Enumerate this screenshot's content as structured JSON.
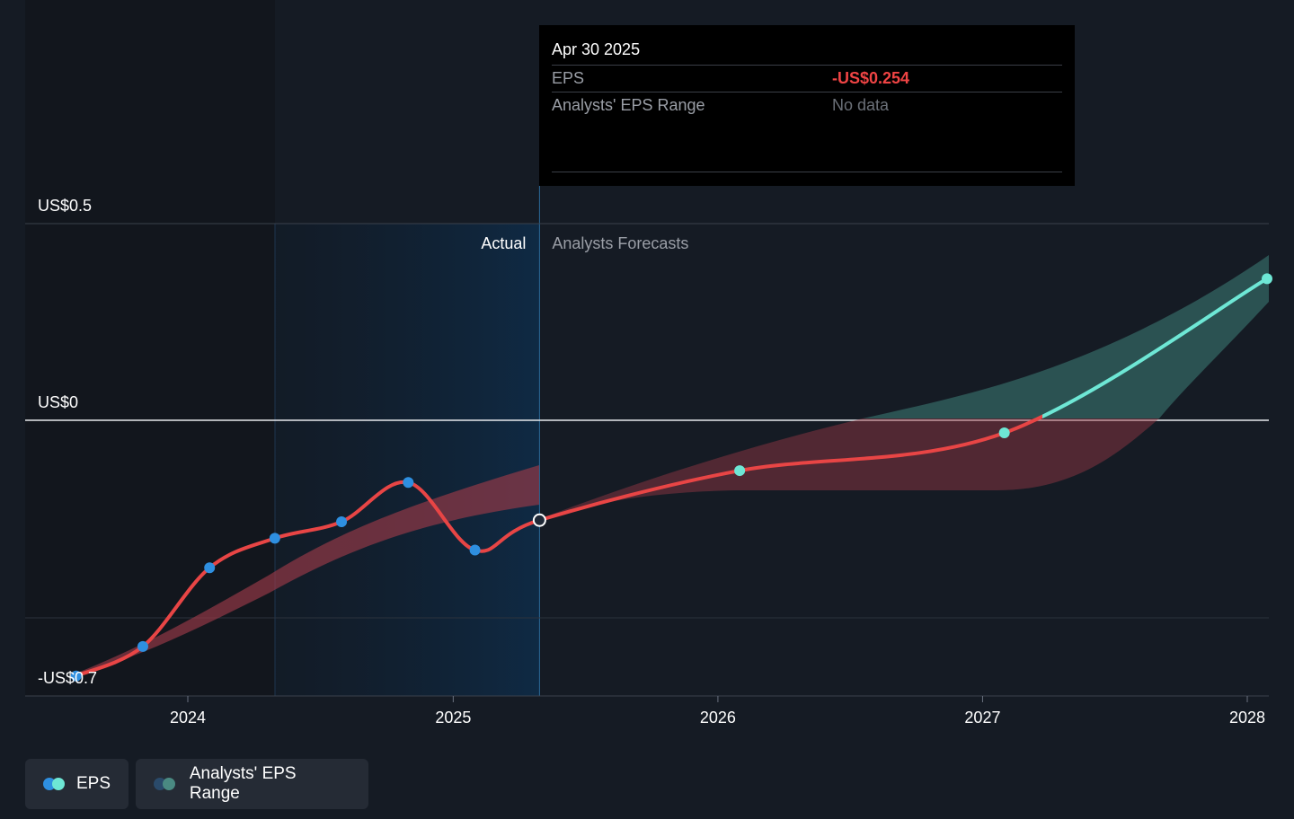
{
  "chart_data": {
    "type": "line",
    "y_axis": {
      "ticks": [
        {
          "value": 0.5,
          "label": "US$0.5"
        },
        {
          "value": 0,
          "label": "US$0"
        },
        {
          "value": -0.7,
          "label": "-US$0.7"
        }
      ],
      "range": [
        -0.7,
        0.5
      ]
    },
    "x_axis": {
      "range": [
        "2023-05-01",
        "2028-01-01"
      ],
      "ticks": [
        {
          "value": "2024-01-01",
          "label": "2024"
        },
        {
          "value": "2025-01-01",
          "label": "2025"
        },
        {
          "value": "2026-01-01",
          "label": "2026"
        },
        {
          "value": "2027-01-01",
          "label": "2027"
        },
        {
          "value": "2028-01-01",
          "label": "2028"
        }
      ]
    },
    "section_labels": {
      "actual": "Actual",
      "forecast": "Analysts Forecasts"
    },
    "series": [
      {
        "name": "EPS",
        "actual_color": "#e84545",
        "forecast_color": "#6ee7d5",
        "points": [
          {
            "x": "2023-07-31",
            "y": -0.65,
            "kind": "actual"
          },
          {
            "x": "2023-10-31",
            "y": -0.575,
            "kind": "actual"
          },
          {
            "x": "2024-01-31",
            "y": -0.375,
            "kind": "actual"
          },
          {
            "x": "2024-04-30",
            "y": -0.3,
            "kind": "actual"
          },
          {
            "x": "2024-07-31",
            "y": -0.258,
            "kind": "actual"
          },
          {
            "x": "2024-10-31",
            "y": -0.158,
            "kind": "actual"
          },
          {
            "x": "2025-01-31",
            "y": -0.33,
            "kind": "actual"
          },
          {
            "x": "2025-04-30",
            "y": -0.254,
            "kind": "actual"
          },
          {
            "x": "2026-01-31",
            "y": -0.128,
            "kind": "forecast"
          },
          {
            "x": "2027-01-31",
            "y": -0.032,
            "kind": "forecast"
          },
          {
            "x": "2028-01-31",
            "y": 0.36,
            "kind": "forecast"
          }
        ]
      }
    ],
    "legend": [
      "EPS",
      "Analysts' EPS Range"
    ],
    "legend_position": "bottom-left"
  },
  "tooltip": {
    "date": "Apr 30 2025",
    "rows": [
      {
        "label": "EPS",
        "value": "-US$0.254"
      },
      {
        "label": "Analysts' EPS Range",
        "value": "No data"
      }
    ]
  },
  "legend": {
    "eps_label": "EPS",
    "range_label": "Analysts' EPS Range"
  },
  "colors": {
    "background": "#151b24",
    "actual_band": "#0f2236",
    "eps_line": "#e84545",
    "eps_point": "#2e8fe0",
    "forecast_point": "#6ee7d5",
    "range_red": "#9b3a48",
    "range_green": "#2f5c5a"
  }
}
